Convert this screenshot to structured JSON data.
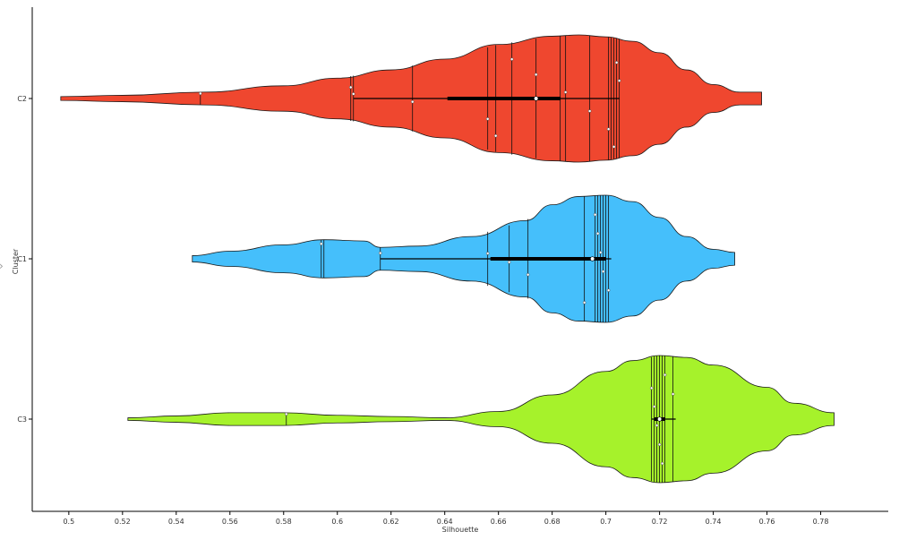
{
  "chart_data": {
    "type": "violin",
    "orientation": "horizontal",
    "xlabel": "Silhouette",
    "ylabel": "Cluster",
    "xlim": [
      0.49,
      0.79
    ],
    "x_ticks": [
      "0.5",
      "0.52",
      "0.54",
      "0.56",
      "0.58",
      "0.6",
      "0.62",
      "0.64",
      "0.66",
      "0.68",
      "0.7",
      "0.72",
      "0.74",
      "0.76",
      "0.78"
    ],
    "x_tick_values": [
      0.5,
      0.52,
      0.54,
      0.56,
      0.58,
      0.6,
      0.62,
      0.64,
      0.66,
      0.68,
      0.7,
      0.72,
      0.74,
      0.76,
      0.78
    ],
    "categories": [
      "C2",
      "C1",
      "C3"
    ],
    "grid": false,
    "series": [
      {
        "category": "C2",
        "color": "#ef472f",
        "min": 0.497,
        "q1": 0.641,
        "median": 0.674,
        "q3": 0.683,
        "max": 0.7,
        "whisker": [
          0.606,
          0.705
        ],
        "density_x": [
          0.497,
          0.52,
          0.55,
          0.58,
          0.6,
          0.62,
          0.64,
          0.66,
          0.68,
          0.69,
          0.7,
          0.71,
          0.72,
          0.73,
          0.74,
          0.75,
          0.758
        ],
        "density_w": [
          0.03,
          0.05,
          0.1,
          0.2,
          0.32,
          0.45,
          0.62,
          0.85,
          0.98,
          1.0,
          0.97,
          0.9,
          0.72,
          0.45,
          0.22,
          0.1,
          0.1
        ],
        "observations": [
          0.549,
          0.605,
          0.606,
          0.628,
          0.656,
          0.659,
          0.665,
          0.674,
          0.683,
          0.685,
          0.694,
          0.701,
          0.702,
          0.703,
          0.704,
          0.705
        ],
        "points": [
          0.549,
          0.605,
          0.606,
          0.628,
          0.656,
          0.659,
          0.665,
          0.674,
          0.685,
          0.694,
          0.701,
          0.703,
          0.704,
          0.705
        ]
      },
      {
        "category": "C1",
        "color": "#45bffb",
        "min": 0.546,
        "q1": 0.657,
        "median": 0.695,
        "q3": 0.7,
        "max": 0.748,
        "whisker": [
          0.616,
          0.702
        ],
        "density_x": [
          0.546,
          0.56,
          0.58,
          0.595,
          0.61,
          0.616,
          0.63,
          0.65,
          0.67,
          0.68,
          0.69,
          0.7,
          0.71,
          0.72,
          0.73,
          0.74,
          0.748
        ],
        "density_w": [
          0.05,
          0.12,
          0.22,
          0.3,
          0.28,
          0.18,
          0.2,
          0.35,
          0.6,
          0.85,
          0.98,
          1.0,
          0.9,
          0.65,
          0.35,
          0.15,
          0.1
        ],
        "observations": [
          0.594,
          0.595,
          0.616,
          0.656,
          0.664,
          0.671,
          0.692,
          0.696,
          0.697,
          0.698,
          0.699,
          0.7,
          0.701
        ],
        "points": [
          0.594,
          0.616,
          0.656,
          0.664,
          0.671,
          0.692,
          0.696,
          0.697,
          0.698,
          0.699,
          0.701
        ]
      },
      {
        "category": "C3",
        "color": "#a6f22b",
        "min": 0.522,
        "q1": 0.718,
        "median": 0.72,
        "q3": 0.722,
        "max": 0.785,
        "whisker": [
          0.717,
          0.726
        ],
        "density_x": [
          0.522,
          0.54,
          0.56,
          0.58,
          0.6,
          0.62,
          0.64,
          0.66,
          0.68,
          0.7,
          0.71,
          0.72,
          0.73,
          0.74,
          0.76,
          0.77,
          0.785
        ],
        "density_w": [
          0.02,
          0.05,
          0.1,
          0.1,
          0.06,
          0.04,
          0.02,
          0.12,
          0.38,
          0.75,
          0.92,
          1.0,
          0.97,
          0.85,
          0.5,
          0.25,
          0.1
        ],
        "observations": [
          0.581,
          0.717,
          0.718,
          0.719,
          0.72,
          0.721,
          0.722,
          0.725
        ],
        "points": [
          0.581,
          0.717,
          0.718,
          0.719,
          0.72,
          0.721,
          0.722,
          0.725
        ]
      }
    ]
  }
}
